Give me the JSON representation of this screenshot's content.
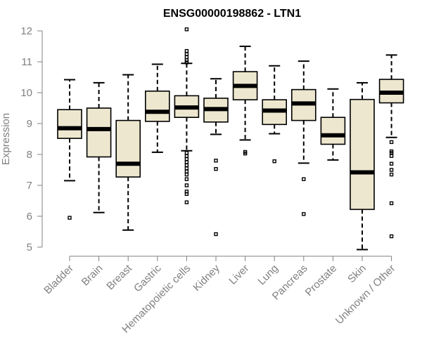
{
  "chart_data": {
    "type": "boxplot",
    "title": "ENSG00000198862 - LTN1",
    "xlabel": "",
    "ylabel": "Expression",
    "ylim": [
      4.8,
      12.2
    ],
    "yticks": [
      5,
      6,
      7,
      8,
      9,
      10,
      11,
      12
    ],
    "box_fill": "#ede7cf",
    "categories": [
      "Bladder",
      "Brain",
      "Breast",
      "Gastric",
      "Hematopoietic cells",
      "Kidney",
      "Liver",
      "Lung",
      "Pancreas",
      "Prostate",
      "Skin",
      "Unknown / Other"
    ],
    "boxes": [
      {
        "category": "Bladder",
        "whisker_low": 7.15,
        "q1": 8.52,
        "median": 8.85,
        "q3": 9.45,
        "whisker_high": 10.42,
        "outliers": [
          5.95
        ]
      },
      {
        "category": "Brain",
        "whisker_low": 6.12,
        "q1": 7.92,
        "median": 8.82,
        "q3": 9.5,
        "whisker_high": 10.32,
        "outliers": []
      },
      {
        "category": "Breast",
        "whisker_low": 5.55,
        "q1": 7.27,
        "median": 7.7,
        "q3": 9.1,
        "whisker_high": 10.58,
        "outliers": []
      },
      {
        "category": "Gastric",
        "whisker_low": 8.07,
        "q1": 9.07,
        "median": 9.38,
        "q3": 10.05,
        "whisker_high": 10.92,
        "outliers": []
      },
      {
        "category": "Hematopoietic cells",
        "whisker_low": 8.12,
        "q1": 9.2,
        "median": 9.52,
        "q3": 9.9,
        "whisker_high": 10.95,
        "outliers": [
          12.05,
          11.35,
          11.25,
          11.15,
          11.05,
          10.98,
          8.05,
          7.95,
          7.85,
          7.75,
          7.65,
          7.55,
          7.45,
          7.35,
          7.2,
          7.0,
          6.8,
          6.72,
          6.45
        ]
      },
      {
        "category": "Kidney",
        "whisker_low": 8.65,
        "q1": 9.05,
        "median": 9.47,
        "q3": 9.82,
        "whisker_high": 10.45,
        "outliers": [
          7.8,
          7.53,
          5.42
        ]
      },
      {
        "category": "Liver",
        "whisker_low": 8.47,
        "q1": 9.77,
        "median": 10.22,
        "q3": 10.68,
        "whisker_high": 11.5,
        "outliers": [
          8.08,
          8.03
        ]
      },
      {
        "category": "Lung",
        "whisker_low": 8.67,
        "q1": 8.97,
        "median": 9.42,
        "q3": 9.77,
        "whisker_high": 10.87,
        "outliers": [
          7.78
        ]
      },
      {
        "category": "Pancreas",
        "whisker_low": 7.72,
        "q1": 9.1,
        "median": 9.65,
        "q3": 10.1,
        "whisker_high": 11.02,
        "outliers": [
          7.2,
          6.07
        ]
      },
      {
        "category": "Prostate",
        "whisker_low": 7.82,
        "q1": 8.33,
        "median": 8.62,
        "q3": 9.2,
        "whisker_high": 10.12,
        "outliers": []
      },
      {
        "category": "Skin",
        "whisker_low": 4.92,
        "q1": 6.22,
        "median": 7.42,
        "q3": 9.78,
        "whisker_high": 10.32,
        "outliers": []
      },
      {
        "category": "Unknown / Other",
        "whisker_low": 8.55,
        "q1": 9.67,
        "median": 10.0,
        "q3": 10.43,
        "whisker_high": 11.22,
        "outliers": [
          8.4,
          8.1,
          8.05,
          7.95,
          7.7,
          7.5,
          7.35,
          6.42,
          5.35
        ]
      }
    ]
  }
}
